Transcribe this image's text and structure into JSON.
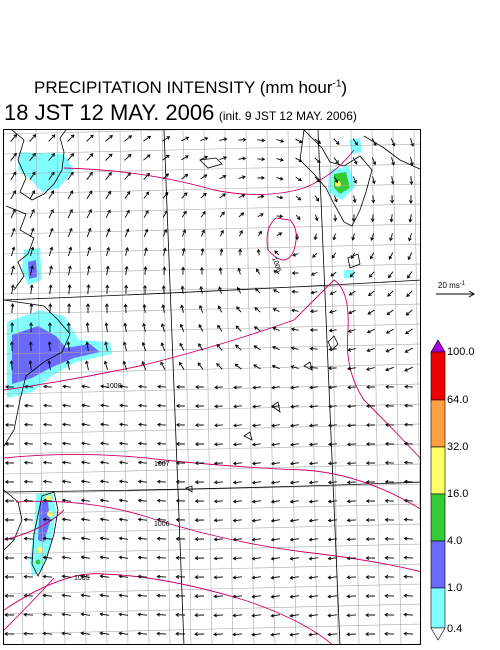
{
  "title": {
    "main_prefix": "PRECIPITATION INTENSITY (mm hour",
    "main_exponent": "-1",
    "main_suffix": ")",
    "time": "18 JST 12 MAY. 2006",
    "init": "(init. 9 JST 12 MAY. 2006)"
  },
  "wind_scale": {
    "label_prefix": "20 ms",
    "label_exponent": "-1"
  },
  "pressure_labels": [
    "1006",
    "1008",
    "1007",
    "1006",
    "1005"
  ],
  "legend": {
    "colors": [
      "#7fffff",
      "#6a6aff",
      "#33cc33",
      "#ffff66",
      "#ffa040",
      "#ee0000",
      "#aa00dd"
    ],
    "labels": [
      "0.4",
      "1.0",
      "4.0",
      "16.0",
      "32.0",
      "64.0",
      "100.0"
    ]
  },
  "map_colors": {
    "coast": "#000000",
    "grid": "#aaaaaa",
    "isobar": "#cc0066",
    "arrow": "#000000"
  }
}
